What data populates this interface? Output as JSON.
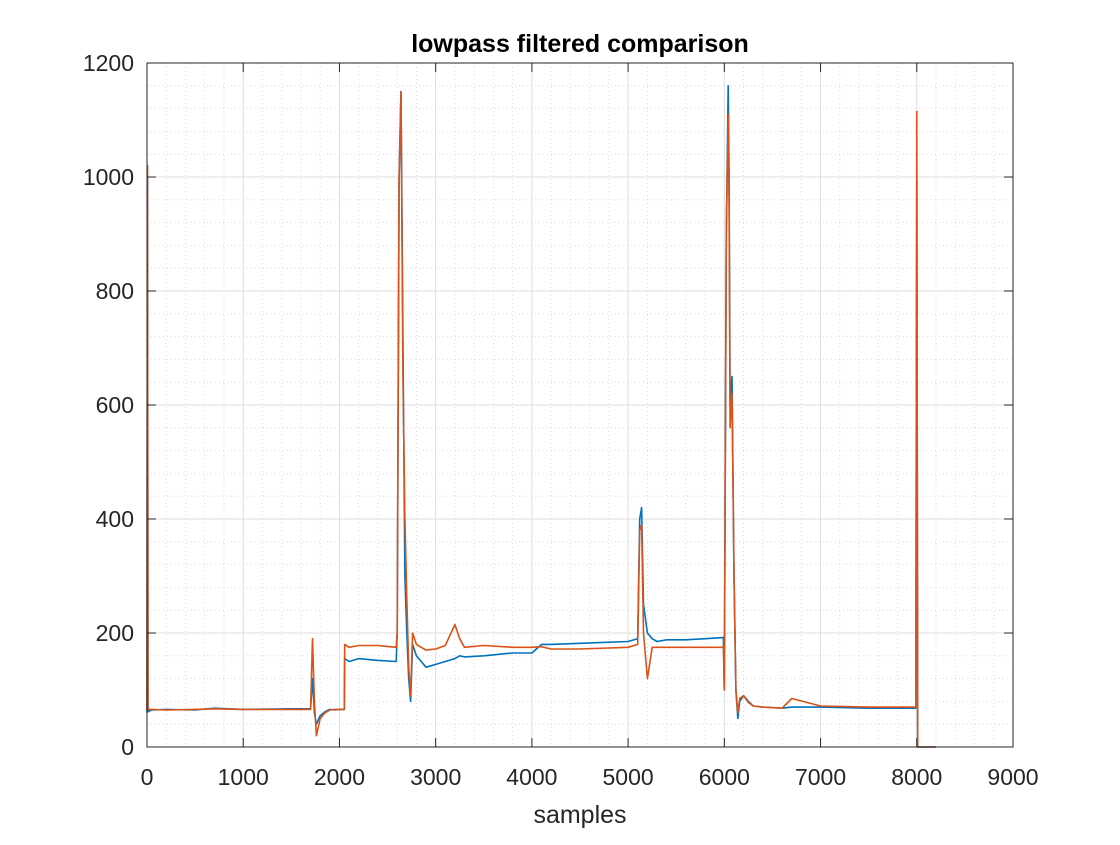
{
  "chart_data": {
    "type": "line",
    "title": "lowpass filtered comparison",
    "xlabel": "samples",
    "ylabel": "",
    "xlim": [
      0,
      9000
    ],
    "ylim": [
      0,
      1200
    ],
    "xticks": [
      0,
      1000,
      2000,
      3000,
      4000,
      5000,
      6000,
      7000,
      8000,
      9000
    ],
    "yticks": [
      0,
      200,
      400,
      600,
      800,
      1000,
      1200
    ],
    "xtick_labels": [
      "0",
      "1000",
      "2000",
      "3000",
      "4000",
      "5000",
      "6000",
      "7000",
      "8000",
      "9000"
    ],
    "ytick_labels": [
      "0",
      "200",
      "400",
      "600",
      "800",
      "1000",
      "1200"
    ],
    "grid": true,
    "minor_grid": true,
    "legend": "none",
    "series": [
      {
        "color": "#0072BD",
        "x": [
          0,
          5,
          10,
          50,
          200,
          500,
          700,
          1000,
          1500,
          1700,
          1720,
          1740,
          1760,
          1800,
          1850,
          1900,
          1950,
          2000,
          2050,
          2055,
          2100,
          2200,
          2400,
          2590,
          2600,
          2620,
          2640,
          2660,
          2680,
          2700,
          2720,
          2740,
          2760,
          2800,
          2850,
          2900,
          3000,
          3100,
          3200,
          3250,
          3300,
          3500,
          3800,
          4000,
          4100,
          4200,
          4500,
          5000,
          5100,
          5120,
          5140,
          5160,
          5200,
          5250,
          5300,
          5400,
          5600,
          5800,
          5990,
          6000,
          6020,
          6040,
          6050,
          6060,
          6080,
          6100,
          6120,
          6140,
          6160,
          6200,
          6250,
          6300,
          6400,
          6600,
          6700,
          7000,
          7500,
          7990,
          8000,
          8010,
          8020,
          8200
        ],
        "y": [
          60,
          1000,
          62,
          65,
          66,
          65,
          68,
          66,
          67,
          67,
          120,
          60,
          40,
          55,
          62,
          66,
          65,
          66,
          66,
          155,
          150,
          155,
          152,
          150,
          200,
          1000,
          1150,
          700,
          300,
          200,
          120,
          80,
          180,
          160,
          150,
          140,
          145,
          150,
          155,
          160,
          158,
          160,
          165,
          165,
          180,
          180,
          182,
          185,
          190,
          400,
          420,
          250,
          200,
          190,
          185,
          188,
          188,
          190,
          192,
          100,
          900,
          1160,
          1000,
          600,
          650,
          300,
          100,
          50,
          80,
          90,
          80,
          72,
          70,
          68,
          70,
          70,
          68,
          68,
          1000,
          0,
          0,
          0
        ]
      },
      {
        "color": "#D95319",
        "x": [
          0,
          5,
          10,
          50,
          200,
          500,
          700,
          1000,
          1500,
          1700,
          1720,
          1740,
          1760,
          1800,
          1850,
          1900,
          1950,
          2000,
          2050,
          2055,
          2100,
          2200,
          2400,
          2590,
          2600,
          2620,
          2640,
          2660,
          2680,
          2700,
          2720,
          2740,
          2760,
          2800,
          2850,
          2900,
          3000,
          3100,
          3200,
          3250,
          3300,
          3500,
          3800,
          4000,
          4100,
          4200,
          4500,
          5000,
          5100,
          5120,
          5140,
          5160,
          5200,
          5250,
          5300,
          5400,
          5600,
          5800,
          5990,
          6000,
          6020,
          6040,
          6050,
          6060,
          6080,
          6100,
          6120,
          6140,
          6160,
          6200,
          6250,
          6300,
          6400,
          6600,
          6700,
          7000,
          7500,
          7990,
          8000,
          8010,
          8020,
          8200
        ],
        "y": [
          65,
          1020,
          66,
          66,
          65,
          66,
          67,
          66,
          66,
          66,
          190,
          80,
          20,
          50,
          60,
          65,
          66,
          66,
          66,
          180,
          175,
          178,
          178,
          175,
          200,
          1000,
          1150,
          640,
          400,
          260,
          140,
          90,
          200,
          180,
          175,
          170,
          172,
          178,
          215,
          190,
          175,
          178,
          175,
          175,
          176,
          172,
          172,
          175,
          180,
          380,
          390,
          200,
          120,
          175,
          175,
          175,
          175,
          175,
          175,
          100,
          900,
          1110,
          950,
          560,
          620,
          300,
          100,
          60,
          85,
          90,
          78,
          72,
          70,
          68,
          85,
          72,
          70,
          70,
          1115,
          0,
          0,
          0
        ]
      }
    ]
  }
}
